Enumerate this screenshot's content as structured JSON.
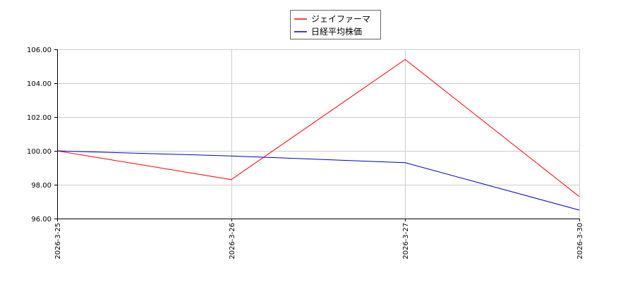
{
  "chart_data": {
    "type": "line",
    "x": [
      "2026-3-25",
      "2026-3-26",
      "2026-3-27",
      "2026-3-30"
    ],
    "series": [
      {
        "name": "ジェイファーマ",
        "color": "#ff0000",
        "values": [
          100.0,
          98.3,
          105.4,
          97.3
        ]
      },
      {
        "name": "日経平均株価",
        "color": "#0000cc",
        "values": [
          100.0,
          99.7,
          99.3,
          96.5
        ]
      }
    ],
    "ylim": [
      96.0,
      106.0
    ],
    "yticks": [
      96.0,
      98.0,
      100.0,
      102.0,
      104.0,
      106.0
    ],
    "ytick_labels": [
      "96.00",
      "98.00",
      "100.00",
      "102.00",
      "104.00",
      "106.00"
    ],
    "grid": true,
    "legend_position": "top-center"
  }
}
